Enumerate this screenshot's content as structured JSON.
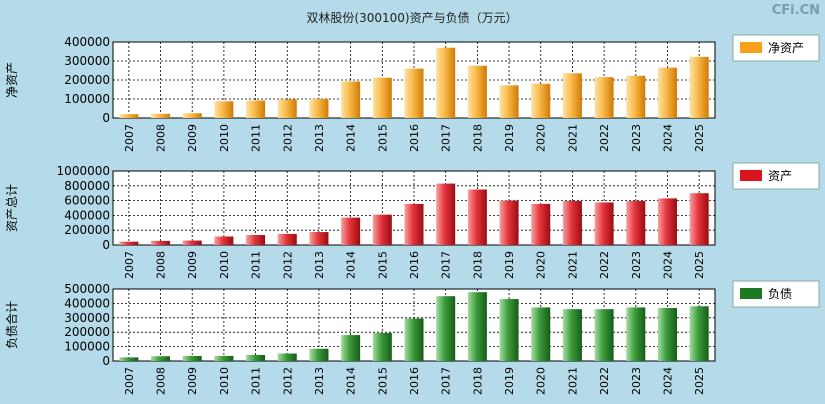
{
  "title": "双林股份(300100)资产与负债（万元）",
  "watermark": "CFi.CN",
  "colors": {
    "background": "#b5dbea",
    "plot_bg": "#ffffff",
    "equity": "#f7a11b",
    "assets": "#d8141c",
    "liabilities": "#1d7a22"
  },
  "chart_data": [
    {
      "type": "bar",
      "title": "双林股份(300100)资产与负债（万元）",
      "ylabel": "净资产",
      "legend": "净资产",
      "ylim": [
        0,
        400000
      ],
      "yticks": [
        "0",
        "100000",
        "200000",
        "300000",
        "400000"
      ],
      "yticks_values": [
        0,
        100000,
        200000,
        300000,
        400000
      ],
      "categories": [
        "2007",
        "2008",
        "2009",
        "2010",
        "2011",
        "2012",
        "2013",
        "2014",
        "2015",
        "2016",
        "2017",
        "2018",
        "2019",
        "2020",
        "2021",
        "2022",
        "2023",
        "2024",
        "2025"
      ],
      "values": [
        20000,
        22000,
        25000,
        88000,
        92000,
        98000,
        100000,
        192000,
        212000,
        260000,
        370000,
        275000,
        172000,
        180000,
        235000,
        215000,
        222000,
        265000,
        322000
      ]
    },
    {
      "type": "bar",
      "ylabel": "资产总计",
      "legend": "资产",
      "ylim": [
        0,
        1000000
      ],
      "yticks": [
        "0",
        "200000",
        "400000",
        "600000",
        "800000",
        "1000000"
      ],
      "yticks_values": [
        0,
        200000,
        400000,
        600000,
        800000,
        1000000
      ],
      "categories": [
        "2007",
        "2008",
        "2009",
        "2010",
        "2011",
        "2012",
        "2013",
        "2014",
        "2015",
        "2016",
        "2017",
        "2018",
        "2019",
        "2020",
        "2021",
        "2022",
        "2023",
        "2024",
        "2025"
      ],
      "values": [
        45000,
        55000,
        60000,
        115000,
        135000,
        150000,
        175000,
        370000,
        410000,
        555000,
        830000,
        750000,
        600000,
        555000,
        595000,
        575000,
        595000,
        630000,
        700000
      ]
    },
    {
      "type": "bar",
      "ylabel": "负债合计",
      "legend": "负债",
      "ylim": [
        0,
        500000
      ],
      "yticks": [
        "0",
        "100000",
        "200000",
        "300000",
        "400000",
        "500000"
      ],
      "yticks_values": [
        0,
        100000,
        200000,
        300000,
        400000,
        500000
      ],
      "categories": [
        "2007",
        "2008",
        "2009",
        "2010",
        "2011",
        "2012",
        "2013",
        "2014",
        "2015",
        "2016",
        "2017",
        "2018",
        "2019",
        "2020",
        "2021",
        "2022",
        "2023",
        "2024",
        "2025"
      ],
      "values": [
        25000,
        33000,
        35000,
        35000,
        42000,
        52000,
        85000,
        180000,
        195000,
        295000,
        450000,
        478000,
        430000,
        372000,
        360000,
        360000,
        372000,
        368000,
        380000
      ]
    }
  ]
}
